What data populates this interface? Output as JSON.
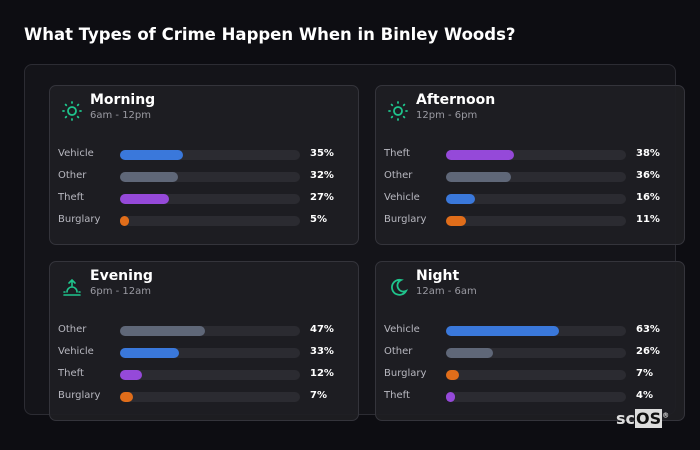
{
  "title": "What Types of Crime Happen When in Binley Woods?",
  "colors": {
    "Vehicle": "#3a78db",
    "Other": "#5f6778",
    "Theft": "#9549d9",
    "Burglary": "#e06d1a",
    "icon": "#1fc48c"
  },
  "logo": {
    "prefix": "sc",
    "box": "OS",
    "mark": "®"
  },
  "chart_data": [
    {
      "type": "bar",
      "title": "Morning",
      "subtitle": "6am - 12pm",
      "icon": "sun-icon",
      "categories": [
        "Vehicle",
        "Other",
        "Theft",
        "Burglary"
      ],
      "values": [
        35,
        32,
        27,
        5
      ],
      "labels": [
        "35%",
        "32%",
        "27%",
        "5%"
      ],
      "xlim": [
        0,
        100
      ]
    },
    {
      "type": "bar",
      "title": "Afternoon",
      "subtitle": "12pm - 6pm",
      "icon": "sun-icon",
      "categories": [
        "Theft",
        "Other",
        "Vehicle",
        "Burglary"
      ],
      "values": [
        38,
        36,
        16,
        11
      ],
      "labels": [
        "38%",
        "36%",
        "16%",
        "11%"
      ],
      "xlim": [
        0,
        100
      ]
    },
    {
      "type": "bar",
      "title": "Evening",
      "subtitle": "6pm - 12am",
      "icon": "sunset-icon",
      "categories": [
        "Other",
        "Vehicle",
        "Theft",
        "Burglary"
      ],
      "values": [
        47,
        33,
        12,
        7
      ],
      "labels": [
        "47%",
        "33%",
        "12%",
        "7%"
      ],
      "xlim": [
        0,
        100
      ]
    },
    {
      "type": "bar",
      "title": "Night",
      "subtitle": "12am - 6am",
      "icon": "moon-icon",
      "categories": [
        "Vehicle",
        "Other",
        "Burglary",
        "Theft"
      ],
      "values": [
        63,
        26,
        7,
        4
      ],
      "labels": [
        "63%",
        "26%",
        "7%",
        "4%"
      ],
      "xlim": [
        0,
        100
      ]
    }
  ]
}
